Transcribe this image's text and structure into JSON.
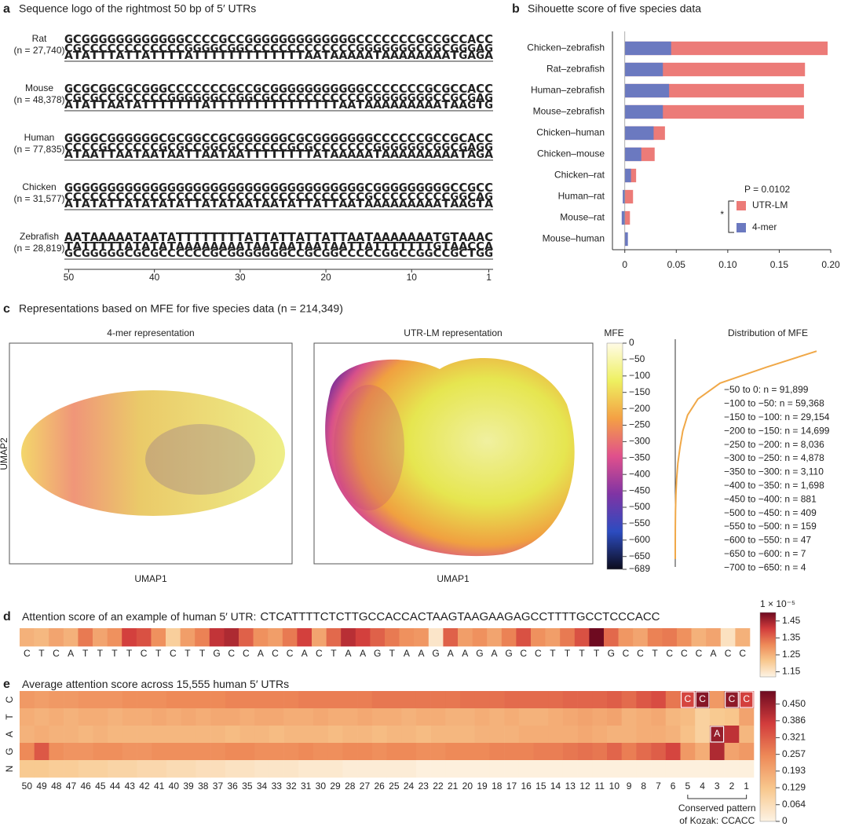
{
  "chart_data": [
    {
      "type": "logo",
      "panel": "a",
      "title": "Sequence logo of the rightmost 50 bp of 5′ UTRs",
      "letter_colors": {
        "A": "#3a9a3a",
        "C": "#2f4fb5",
        "G": "#f0a324",
        "T": "#e03a32"
      },
      "species": [
        {
          "name": "Rat",
          "n_label": "(n = 27,740)",
          "rows": [
            "GCGGGGGGGGGGGGCCCCGCCGGGGGGGGGGGGGCCCCCCCGCCGCCACC",
            "CGCCCCCCCCCCCCGGGGCGGCCCCCCCCCCCCCGGGGGGGCGGCGGGAG",
            "ATATTTATTATTTTATTTTTTTTTTTTTAATAAAAATAAAAAAAATGAGA"
          ]
        },
        {
          "name": "Mouse",
          "n_label": "(n = 48,378)",
          "rows": [
            "GCGCGGCGCGGGCCCCCCCGCCGCGGGGGGGGGGGCCCCCCCGCGCCACC",
            "CGCGCCGCCCCCGGGGGGCCGGCGCCCCCCCCCCCGGGGGGGGCCGCGAG",
            "ATATTAATATTTTTTTATTTTTTTTTTTTTTTAATAAAAAAAAATAAGTG"
          ]
        },
        {
          "name": "Human",
          "n_label": "(n = 77,835)",
          "rows": [
            "GGGGCGGGGGGCGCGGCCGCGGGGGGCGCGGGGGGGCCCCCCGCCGCACC",
            "CCCCGCCCCCCGCGCCGGCGCCCCCCGCGCCCCCCCGGGGGGCGGCGAGG",
            "ATAATTAATAATAATTAATAATTTTTTTTATAAAAATAAAAAAAAATAGA"
          ]
        },
        {
          "name": "Chicken",
          "n_label": "(n = 31,577)",
          "rows": [
            "GGGGGGGGGGGGGGGGGGGGGGGGGGGGGGGGGGGCGGGGGGGGGCCGCC",
            "CCCCCCCCCCCCCCCCCCCCCCCCCCCCCCCCCCCGCCCCCCCCCGGCAG",
            "ATATATTATATATATTATATAATAATATTATTAATAAAAAAAAATAAGTA"
          ]
        },
        {
          "name": "Zebrafish",
          "n_label": "(n = 28,819)",
          "rows": [
            "AATAAAAATAATATTTTTTTTATTATTATTATTAATAAAAAAATGTAAAC",
            "TATTTTTATATATAAAAAAAATAATAATAATAATTATTTTTTTGTAACCA",
            "GCGGGGGCGCGCCCCCCGCGGGGGGGCCGCGGCCCCCGGCCGGCCGCTGG"
          ]
        }
      ],
      "xlim": [
        50,
        1
      ],
      "xticks": [
        50,
        40,
        30,
        20,
        10,
        1
      ]
    },
    {
      "type": "bar",
      "panel": "b",
      "title": "Sihouette score of five species data",
      "orientation": "horizontal",
      "categories": [
        "Chicken–zebrafish",
        "Rat–zebrafish",
        "Human–zebrafish",
        "Mouse–zebrafish",
        "Chicken–human",
        "Chicken–mouse",
        "Chicken–rat",
        "Human–rat",
        "Mouse–rat",
        "Mouse–human"
      ],
      "series": [
        {
          "name": "UTR-LM",
          "color": "#ec7b78",
          "values": [
            0.197,
            0.175,
            0.174,
            0.174,
            0.039,
            0.029,
            0.011,
            0.008,
            0.005,
            0.001
          ]
        },
        {
          "name": "4-mer",
          "color": "#6b79c0",
          "values": [
            0.045,
            0.037,
            0.043,
            0.037,
            0.028,
            0.016,
            0.006,
            -0.002,
            -0.003,
            0.003
          ]
        }
      ],
      "xlim": [
        -0.012,
        0.2
      ],
      "xticks": [
        0,
        0.05,
        {
          "value": 0.1,
          "label": "0.10"
        },
        0.15,
        {
          "value": 0.2,
          "label": "0.20"
        }
      ],
      "legend": "lower right",
      "annotations": [
        "P = 0.0102",
        "*"
      ]
    },
    {
      "type": "umap",
      "panel": "c",
      "title": "Representations based on MFE for five species data (n = 214,349)",
      "subplots": [
        {
          "title": "4-mer representation",
          "xlabel": "UMAP1",
          "ylabel": "UMAP2"
        },
        {
          "title": "UTR-LM representation",
          "xlabel": "UMAP1"
        }
      ],
      "colorbar": {
        "label": "MFE",
        "lim": [
          -689,
          0
        ],
        "colormap": [
          "#0c0c1c",
          "#2c4cc0",
          "#8034a4",
          "#e0508c",
          "#f4a044",
          "#eef060",
          "#fffbe6"
        ],
        "ticks": [
          0,
          {
            "value": -50,
            "label": "−50"
          },
          {
            "value": -100,
            "label": "−100"
          },
          {
            "value": -150,
            "label": "−150"
          },
          {
            "value": -200,
            "label": "−200"
          },
          {
            "value": -250,
            "label": "−250"
          },
          {
            "value": -300,
            "label": "−300"
          },
          {
            "value": -350,
            "label": "−350"
          },
          {
            "value": -400,
            "label": "−400"
          },
          {
            "value": -450,
            "label": "−450"
          },
          {
            "value": -500,
            "label": "−500"
          },
          {
            "value": -550,
            "label": "−550"
          },
          {
            "value": -600,
            "label": "−600"
          },
          {
            "value": -650,
            "label": "−650"
          },
          {
            "value": -689,
            "label": "−689"
          }
        ]
      }
    },
    {
      "type": "density",
      "title": "Distribution of MFE",
      "color": "#f0a848",
      "values": [
        91899,
        59368,
        29154,
        14699,
        8036,
        4878,
        3110,
        1698,
        881,
        409,
        159,
        47,
        7,
        4
      ],
      "value_labels": [
        "−50 to 0: n = 91,899",
        "−100 to −50: n = 59,368",
        "−150 to −100: n = 29,154",
        "−200 to −150: n = 14,699",
        "−250 to −200: n = 8,036",
        "−300 to −250: n = 4,878",
        "−350 to −300: n = 3,110",
        "−400 to −350: n = 1,698",
        "−450 to −400: n = 881",
        "−500 to −450: n = 409",
        "−550 to −500: n = 159",
        "−600 to −550: n = 47",
        "−650 to −600: n = 7",
        "−700 to −650: n = 4"
      ]
    },
    {
      "type": "heatmap",
      "panel": "d",
      "title": "Attention score of an example of human 5′ UTR:",
      "sequence": "CTCATTTTCTCTTGCCACCACTAAGTAAGAAGAGCCTTTTGCCTCCCACC",
      "values": [
        1.25,
        1.24,
        1.27,
        1.25,
        1.33,
        1.27,
        1.3,
        1.4,
        1.38,
        1.3,
        1.2,
        1.28,
        1.32,
        1.42,
        1.44,
        1.36,
        1.3,
        1.28,
        1.33,
        1.4,
        1.27,
        1.35,
        1.43,
        1.4,
        1.36,
        1.33,
        1.3,
        1.29,
        1.15,
        1.36,
        1.28,
        1.3,
        1.27,
        1.32,
        1.38,
        1.3,
        1.28,
        1.33,
        1.38,
        1.5,
        1.35,
        1.29,
        1.27,
        1.32,
        1.33,
        1.3,
        1.25,
        1.27,
        1.16,
        1.25
      ],
      "colormap": [
        "#fdf3e4",
        "#f8c88e",
        "#ee8a58",
        "#d23c3c",
        "#6e0a20"
      ],
      "clim": [
        1.12,
        1.5
      ],
      "cticks": [
        1.15,
        1.25,
        1.35,
        1.45
      ],
      "colorbar_label": "1 × 10⁻⁵"
    },
    {
      "type": "heatmap",
      "panel": "e",
      "title": "Average attention score across 15,555 human 5′ UTRs",
      "categories": [
        50,
        49,
        48,
        47,
        46,
        45,
        44,
        43,
        42,
        41,
        40,
        39,
        38,
        37,
        36,
        35,
        34,
        33,
        32,
        31,
        30,
        29,
        28,
        27,
        26,
        25,
        24,
        23,
        22,
        21,
        20,
        19,
        18,
        17,
        16,
        15,
        14,
        13,
        12,
        11,
        10,
        9,
        8,
        7,
        6,
        5,
        4,
        3,
        2,
        1
      ],
      "rows": [
        {
          "name": "C",
          "values": [
            0.22,
            0.21,
            0.22,
            0.22,
            0.23,
            0.23,
            0.23,
            0.24,
            0.24,
            0.24,
            0.25,
            0.25,
            0.25,
            0.25,
            0.26,
            0.26,
            0.26,
            0.26,
            0.26,
            0.27,
            0.27,
            0.27,
            0.27,
            0.27,
            0.28,
            0.28,
            0.28,
            0.28,
            0.28,
            0.28,
            0.29,
            0.29,
            0.29,
            0.3,
            0.3,
            0.3,
            0.3,
            0.31,
            0.31,
            0.31,
            0.32,
            0.3,
            0.33,
            0.35,
            0.28,
            0.36,
            0.47,
            0.22,
            0.46,
            0.37
          ]
        },
        {
          "name": "T",
          "values": [
            0.18,
            0.17,
            0.18,
            0.17,
            0.18,
            0.18,
            0.17,
            0.18,
            0.18,
            0.19,
            0.18,
            0.19,
            0.18,
            0.19,
            0.19,
            0.18,
            0.19,
            0.19,
            0.18,
            0.18,
            0.19,
            0.18,
            0.18,
            0.19,
            0.18,
            0.18,
            0.17,
            0.18,
            0.18,
            0.17,
            0.17,
            0.18,
            0.17,
            0.18,
            0.17,
            0.17,
            0.18,
            0.19,
            0.2,
            0.19,
            0.2,
            0.17,
            0.18,
            0.19,
            0.16,
            0.15,
            0.1,
            0.12,
            0.13,
            0.2
          ]
        },
        {
          "name": "A",
          "values": [
            0.17,
            0.18,
            0.17,
            0.17,
            0.16,
            0.17,
            0.16,
            0.16,
            0.16,
            0.16,
            0.16,
            0.16,
            0.16,
            0.16,
            0.15,
            0.16,
            0.16,
            0.15,
            0.16,
            0.16,
            0.16,
            0.15,
            0.16,
            0.16,
            0.15,
            0.16,
            0.16,
            0.15,
            0.16,
            0.16,
            0.16,
            0.17,
            0.17,
            0.17,
            0.18,
            0.18,
            0.18,
            0.18,
            0.19,
            0.18,
            0.17,
            0.17,
            0.18,
            0.18,
            0.17,
            0.14,
            0.1,
            0.45,
            0.4,
            0.16
          ]
        },
        {
          "name": "G",
          "values": [
            0.25,
            0.33,
            0.24,
            0.23,
            0.23,
            0.24,
            0.24,
            0.23,
            0.23,
            0.24,
            0.24,
            0.24,
            0.24,
            0.24,
            0.25,
            0.25,
            0.24,
            0.24,
            0.24,
            0.25,
            0.24,
            0.24,
            0.25,
            0.25,
            0.24,
            0.25,
            0.25,
            0.24,
            0.24,
            0.25,
            0.25,
            0.25,
            0.26,
            0.26,
            0.26,
            0.27,
            0.27,
            0.28,
            0.29,
            0.28,
            0.31,
            0.27,
            0.3,
            0.32,
            0.36,
            0.22,
            0.18,
            0.42,
            0.2,
            0.22
          ]
        },
        {
          "name": "N",
          "values": [
            0.12,
            0.12,
            0.11,
            0.11,
            0.1,
            0.1,
            0.09,
            0.09,
            0.08,
            0.08,
            0.07,
            0.07,
            0.06,
            0.06,
            0.05,
            0.05,
            0.04,
            0.04,
            0.04,
            0.03,
            0.03,
            0.03,
            0.02,
            0.02,
            0.02,
            0.02,
            0.02,
            0.01,
            0.01,
            0.01,
            0.01,
            0.01,
            0.01,
            0.01,
            0.01,
            0.01,
            0.01,
            0.01,
            0.01,
            0.01,
            0.01,
            0.01,
            0.01,
            0.01,
            0.01,
            0.01,
            0.01,
            0.01,
            0.01,
            0.01
          ]
        }
      ],
      "cell_labels": [
        "C",
        "C",
        "A",
        "C",
        "C"
      ],
      "annotation": [
        "Conserved pattern",
        "of Kozak: CCACC"
      ],
      "colormap": [
        "#fdf3e4",
        "#f8c88e",
        "#ee8a58",
        "#d23c3c",
        "#6e0a20"
      ],
      "clim": [
        0,
        0.5
      ],
      "cticks": [
        0,
        0.064,
        0.129,
        0.193,
        0.257,
        0.321,
        0.386,
        {
          "value": 0.45,
          "label": "0.450"
        }
      ]
    }
  ]
}
